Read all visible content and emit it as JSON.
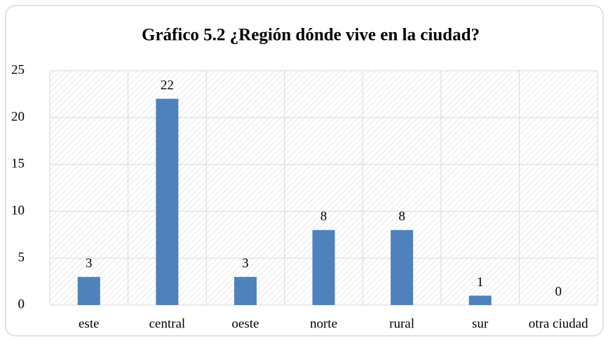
{
  "chart_data": {
    "type": "bar",
    "title": "Gráfico 5.2 ¿Región dónde vive en la ciudad?",
    "categories": [
      "este",
      "central",
      "oeste",
      "norte",
      "rural",
      "sur",
      "otra ciudad"
    ],
    "values": [
      3,
      22,
      3,
      8,
      8,
      1,
      0
    ],
    "color": "#4f81bd",
    "ylim": [
      0,
      25
    ],
    "yticks": [
      0,
      5,
      10,
      15,
      20,
      25
    ],
    "grid": true
  }
}
